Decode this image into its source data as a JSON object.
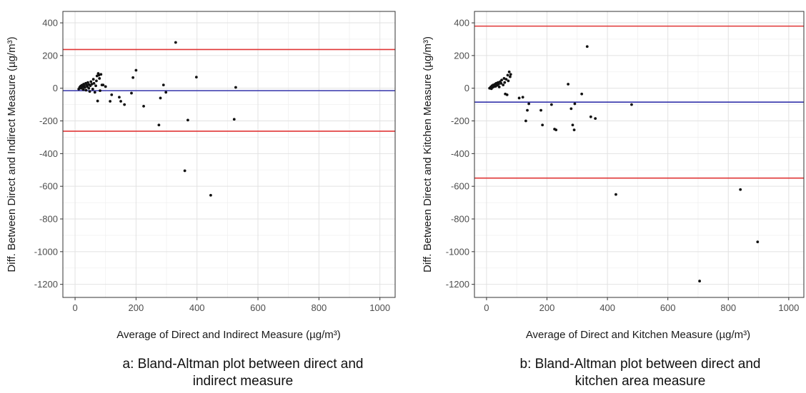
{
  "chart_data": [
    {
      "type": "scatter",
      "panel": "a",
      "xlabel": "Average of Direct and Indirect Measure (µg/m³)",
      "ylabel": "Diff. Between Direct and Indirect Measure (µg/m³)",
      "xlim": [
        -40,
        1050
      ],
      "ylim": [
        -1280,
        470
      ],
      "x_ticks": [
        0,
        200,
        400,
        600,
        800,
        1000
      ],
      "y_ticks": [
        400,
        200,
        0,
        -200,
        -400,
        -600,
        -800,
        -1000,
        -1200
      ],
      "grid": true,
      "points": [
        [
          12,
          -5
        ],
        [
          15,
          5
        ],
        [
          18,
          12
        ],
        [
          20,
          0
        ],
        [
          22,
          18
        ],
        [
          25,
          8
        ],
        [
          27,
          -8
        ],
        [
          28,
          25
        ],
        [
          30,
          15
        ],
        [
          32,
          5
        ],
        [
          35,
          30
        ],
        [
          36,
          -12
        ],
        [
          38,
          20
        ],
        [
          40,
          10
        ],
        [
          42,
          35
        ],
        [
          45,
          0
        ],
        [
          46,
          22
        ],
        [
          48,
          -20
        ],
        [
          50,
          15
        ],
        [
          52,
          40
        ],
        [
          55,
          25
        ],
        [
          58,
          -5
        ],
        [
          60,
          55
        ],
        [
          62,
          30
        ],
        [
          65,
          -25
        ],
        [
          68,
          15
        ],
        [
          70,
          45
        ],
        [
          72,
          75
        ],
        [
          74,
          -78
        ],
        [
          76,
          90
        ],
        [
          78,
          80
        ],
        [
          80,
          60
        ],
        [
          82,
          -15
        ],
        [
          85,
          85
        ],
        [
          88,
          20
        ],
        [
          92,
          20
        ],
        [
          100,
          10
        ],
        [
          115,
          -80
        ],
        [
          120,
          -40
        ],
        [
          145,
          -55
        ],
        [
          150,
          -80
        ],
        [
          162,
          -100
        ],
        [
          185,
          -30
        ],
        [
          190,
          65
        ],
        [
          200,
          110
        ],
        [
          225,
          -110
        ],
        [
          275,
          -225
        ],
        [
          280,
          -60
        ],
        [
          290,
          20
        ],
        [
          298,
          -25
        ],
        [
          330,
          280
        ],
        [
          360,
          -505
        ],
        [
          370,
          -195
        ],
        [
          398,
          68
        ],
        [
          445,
          -655
        ],
        [
          522,
          -190
        ],
        [
          527,
          5
        ]
      ],
      "mean_line": -15,
      "loa_upper": 237,
      "loa_lower": -263,
      "mean_color": "#3333aa",
      "loa_color": "#e03535"
    },
    {
      "type": "scatter",
      "panel": "b",
      "xlabel": "Average of Direct and Kitchen Measure (µg/m³)",
      "ylabel": "Diff. Between Direct and Kitchen Measure (µg/m³)",
      "xlim": [
        -40,
        1050
      ],
      "ylim": [
        -1280,
        470
      ],
      "x_ticks": [
        0,
        200,
        400,
        600,
        800,
        1000
      ],
      "y_ticks": [
        400,
        200,
        0,
        -200,
        -400,
        -600,
        -800,
        -1000,
        -1200
      ],
      "grid": true,
      "points": [
        [
          10,
          0
        ],
        [
          14,
          8
        ],
        [
          16,
          -3
        ],
        [
          18,
          15
        ],
        [
          20,
          5
        ],
        [
          22,
          20
        ],
        [
          25,
          10
        ],
        [
          28,
          25
        ],
        [
          30,
          12
        ],
        [
          32,
          30
        ],
        [
          35,
          18
        ],
        [
          38,
          35
        ],
        [
          40,
          25
        ],
        [
          42,
          8
        ],
        [
          45,
          40
        ],
        [
          48,
          30
        ],
        [
          50,
          50
        ],
        [
          55,
          20
        ],
        [
          58,
          60
        ],
        [
          60,
          35
        ],
        [
          62,
          -35
        ],
        [
          65,
          55
        ],
        [
          68,
          -40
        ],
        [
          70,
          80
        ],
        [
          72,
          45
        ],
        [
          75,
          100
        ],
        [
          78,
          70
        ],
        [
          80,
          85
        ],
        [
          108,
          -60
        ],
        [
          120,
          -55
        ],
        [
          130,
          -200
        ],
        [
          135,
          -135
        ],
        [
          140,
          -95
        ],
        [
          180,
          -135
        ],
        [
          185,
          -225
        ],
        [
          215,
          -100
        ],
        [
          225,
          -250
        ],
        [
          230,
          -255
        ],
        [
          270,
          25
        ],
        [
          280,
          -125
        ],
        [
          285,
          -225
        ],
        [
          290,
          -255
        ],
        [
          292,
          -95
        ],
        [
          315,
          -35
        ],
        [
          333,
          255
        ],
        [
          345,
          -175
        ],
        [
          360,
          -185
        ],
        [
          428,
          -650
        ],
        [
          480,
          -100
        ],
        [
          705,
          -1180
        ],
        [
          840,
          -620
        ],
        [
          897,
          -940
        ]
      ],
      "mean_line": -85,
      "loa_upper": 380,
      "loa_lower": -550,
      "mean_color": "#3333aa",
      "loa_color": "#e03535"
    }
  ],
  "captions": {
    "a": {
      "line1": "a:  Bland-Altman plot between direct and",
      "line2": "indirect measure"
    },
    "b": {
      "line1": "b:  Bland-Altman plot between direct and",
      "line2": "kitchen area measure"
    }
  }
}
